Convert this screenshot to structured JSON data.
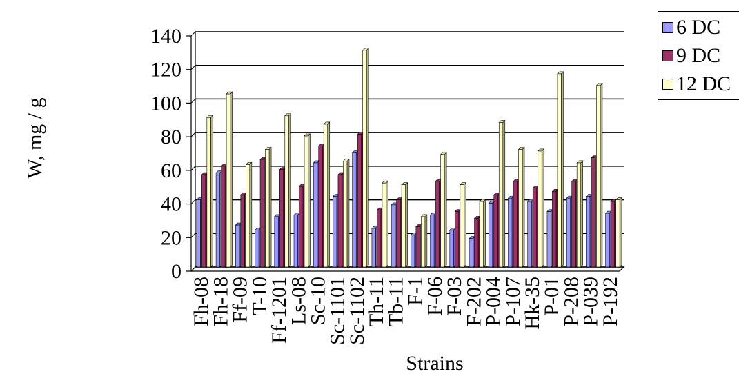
{
  "chart_data": {
    "type": "bar",
    "title": "",
    "xlabel": "Strains",
    "ylabel": "W, mg / g",
    "ylim": [
      0,
      140
    ],
    "yticks": [
      0,
      20,
      40,
      60,
      80,
      100,
      120,
      140
    ],
    "grid": true,
    "legend_position": "top-right",
    "categories": [
      "Fh-08",
      "Fh-18",
      "Ff-09",
      "T-10",
      "Ff-1201",
      "Ls-08",
      "Sc-10",
      "Sc-1101",
      "Sc-1102",
      "Th-11",
      "Tb-11",
      "F-1",
      "F-06",
      "F-03",
      "F-202",
      "P-004",
      "P-107",
      "Hk-35",
      "P-01",
      "P-208",
      "P-039",
      "P-192"
    ],
    "series": [
      {
        "name": "6 DC",
        "color": "#9999ff",
        "values": [
          40,
          56,
          25,
          22,
          30,
          31,
          62,
          42,
          68,
          23,
          37,
          19,
          31,
          22,
          17,
          38,
          41,
          39,
          33,
          41,
          42,
          32
        ]
      },
      {
        "name": "9 DC",
        "color": "#993366",
        "values": [
          55,
          60,
          43,
          64,
          58,
          48,
          72,
          55,
          79,
          34,
          40,
          24,
          51,
          33,
          29,
          43,
          51,
          47,
          45,
          51,
          65,
          39
        ]
      },
      {
        "name": "12 DC",
        "color": "#ffffcc",
        "values": [
          89,
          103,
          61,
          70,
          90,
          78,
          85,
          63,
          129,
          50,
          49,
          30,
          67,
          49,
          39,
          86,
          70,
          69,
          115,
          62,
          108,
          40
        ]
      }
    ]
  }
}
